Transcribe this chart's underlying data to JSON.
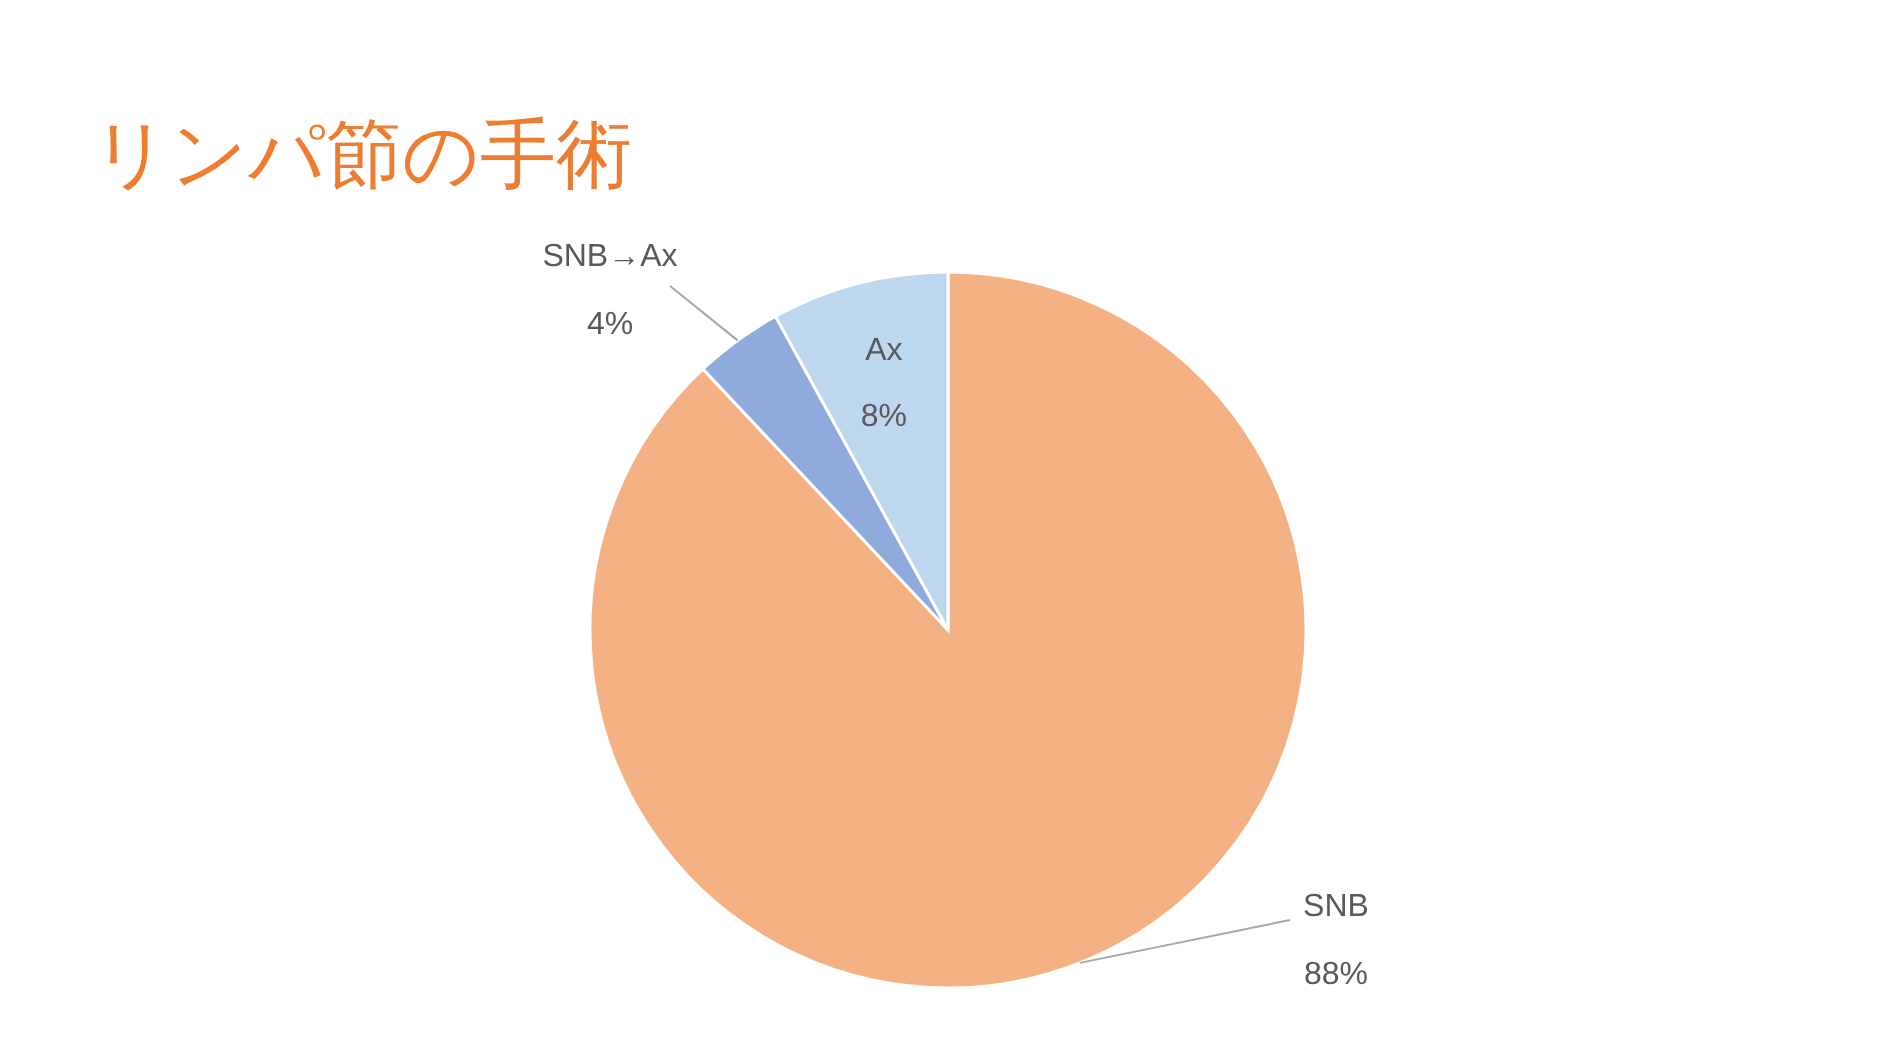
{
  "chart_data": {
    "type": "pie",
    "title": "リンパ節の手術",
    "categories": [
      "SNB",
      "SNB→Ax",
      "Ax"
    ],
    "values": [
      88,
      4,
      8
    ],
    "colors": [
      "#f4b183",
      "#8faadc",
      "#bdd7ee"
    ],
    "value_labels": [
      "88%",
      "4%",
      "8%"
    ]
  }
}
